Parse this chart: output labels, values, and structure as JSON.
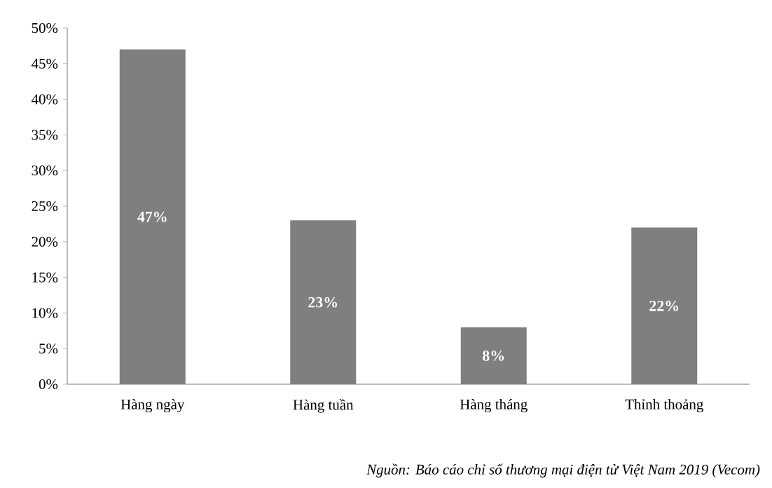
{
  "chart_data": {
    "type": "bar",
    "categories": [
      "Hàng ngày",
      "Hàng tuần",
      "Hàng tháng",
      "Thỉnh thoảng"
    ],
    "values": [
      47,
      23,
      8,
      22
    ],
    "color": "#7f7f7f",
    "data_labels": true,
    "value_labels": [
      "47%",
      "23%",
      "8%",
      "22%"
    ],
    "ylim": [
      0,
      50
    ],
    "yticks": [
      {
        "value": 0,
        "label": "0%"
      },
      {
        "value": 5,
        "label": "5%"
      },
      {
        "value": 10,
        "label": "10%"
      },
      {
        "value": 15,
        "label": "15%"
      },
      {
        "value": 20,
        "label": "20%"
      },
      {
        "value": 25,
        "label": "25%"
      },
      {
        "value": 30,
        "label": "30%"
      },
      {
        "value": 35,
        "label": "35%"
      },
      {
        "value": 40,
        "label": "40%"
      },
      {
        "value": 45,
        "label": "45%"
      },
      {
        "value": 50,
        "label": "50%"
      }
    ],
    "grid": false,
    "annotations": [
      "Nguồn: Báo cáo chỉ số thương mại điện tử Việt Nam 2019 (Vecom)"
    ]
  }
}
